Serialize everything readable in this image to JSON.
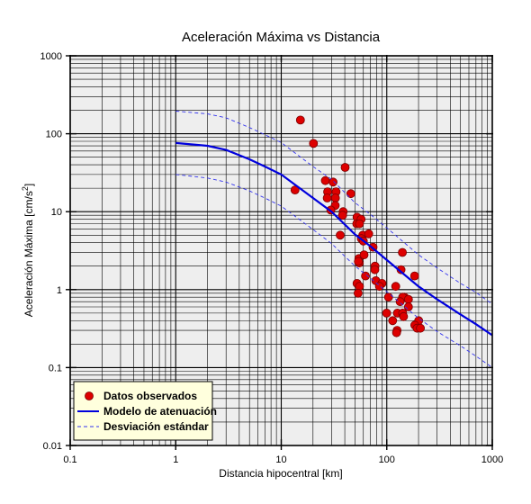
{
  "chart_data": {
    "type": "scatter",
    "title": "Aceleración Máxima vs Distancia",
    "xlabel": "Distancia hipocentral [km]",
    "ylabel_main": "Aceleración Máxima [cm/s",
    "ylabel_sup": "2",
    "ylabel_end": "]",
    "xscale": "log",
    "yscale": "log",
    "xlim": [
      0.1,
      1000
    ],
    "ylim": [
      0.01,
      1000
    ],
    "grid": true,
    "legend_position": "bottom-left",
    "x_ticks": [
      {
        "value": 0.1,
        "label": "0.1"
      },
      {
        "value": 1,
        "label": "1"
      },
      {
        "value": 10,
        "label": "10"
      },
      {
        "value": 100,
        "label": "100"
      },
      {
        "value": 1000,
        "label": "1000"
      }
    ],
    "y_ticks": [
      {
        "value": 0.01,
        "label": "0.01"
      },
      {
        "value": 0.1,
        "label": "0.1"
      },
      {
        "value": 1,
        "label": "1"
      },
      {
        "value": 10,
        "label": "10"
      },
      {
        "value": 100,
        "label": "100"
      },
      {
        "value": 1000,
        "label": "1000"
      }
    ],
    "series": [
      {
        "name": "Datos observados",
        "kind": "points",
        "x": [
          15.2,
          20.2,
          13.5,
          26.2,
          31.0,
          33.1,
          40.3,
          45.6,
          32.6,
          27.5,
          27.3,
          32.5,
          38.6,
          29.5,
          38.2,
          52.3,
          51.9,
          57.1,
          55.1,
          59.2,
          36.2,
          57.4,
          67.4,
          60.0,
          74.1,
          54.3,
          54.9,
          60.9,
          77.4,
          53.8,
          52.3,
          77.1,
          62.9,
          78.8,
          140.7,
          136.6,
          90.0,
          85.2,
          55.1,
          121.6,
          53.5,
          147.2,
          141.4,
          160.3,
          183.7,
          160.3,
          133.8,
          104.0,
          99.7,
          126.1,
          113.8,
          141.4,
          144.3,
          200.6,
          184.3,
          193.6,
          208.4,
          125.2,
          123.8
        ],
        "y": [
          150,
          75,
          19,
          25,
          24,
          18,
          37,
          17,
          15,
          18,
          15,
          12,
          10,
          10.5,
          9,
          8.5,
          7,
          8,
          7,
          5,
          5,
          4.5,
          5.2,
          4.2,
          3.5,
          2.5,
          2.2,
          2.8,
          2,
          2.3,
          1.2,
          1.8,
          1.5,
          1.3,
          3,
          1.8,
          1.2,
          1.1,
          1.1,
          1.1,
          0.9,
          0.8,
          0.8,
          0.75,
          1.5,
          0.6,
          0.7,
          0.8,
          0.5,
          0.5,
          0.4,
          0.5,
          0.45,
          0.4,
          0.35,
          0.32,
          0.32,
          0.3,
          0.28
        ],
        "color": "#dd0000",
        "edge_color": "#7a0000"
      },
      {
        "name": "Modelo de atenuación",
        "kind": "line",
        "x": [
          1,
          2,
          3,
          5,
          7,
          10,
          20,
          30,
          50,
          70,
          100,
          200,
          300,
          500,
          700,
          1000
        ],
        "y": [
          76,
          70,
          62,
          47,
          38,
          30,
          15,
          10,
          5.1,
          3.6,
          2.4,
          1.1,
          0.75,
          0.48,
          0.36,
          0.26
        ],
        "color": "#0000dd"
      },
      {
        "name": "Desviación estándar",
        "kind": "dashed",
        "x": [
          1,
          2,
          3,
          5,
          7,
          10,
          20,
          30,
          50,
          70,
          100,
          200,
          300,
          500,
          700,
          1000
        ],
        "y": [
          195,
          180,
          160,
          120,
          97,
          77,
          38,
          26,
          13,
          9.2,
          6.2,
          2.8,
          1.9,
          1.2,
          0.92,
          0.65
        ],
        "color": "#3333ee"
      },
      {
        "name": "",
        "kind": "dashed",
        "x": [
          1,
          2,
          3,
          5,
          7,
          10,
          20,
          30,
          50,
          70,
          100,
          200,
          300,
          500,
          700,
          1000
        ],
        "y": [
          30,
          27,
          24,
          18.5,
          15,
          11.8,
          5.9,
          3.9,
          2.0,
          1.4,
          0.94,
          0.43,
          0.29,
          0.19,
          0.14,
          0.1
        ],
        "color": "#3333ee"
      }
    ],
    "colors": {
      "plot_background": "#eeeeee",
      "grid": "#000000",
      "legend_background": "#ffffdd"
    }
  }
}
